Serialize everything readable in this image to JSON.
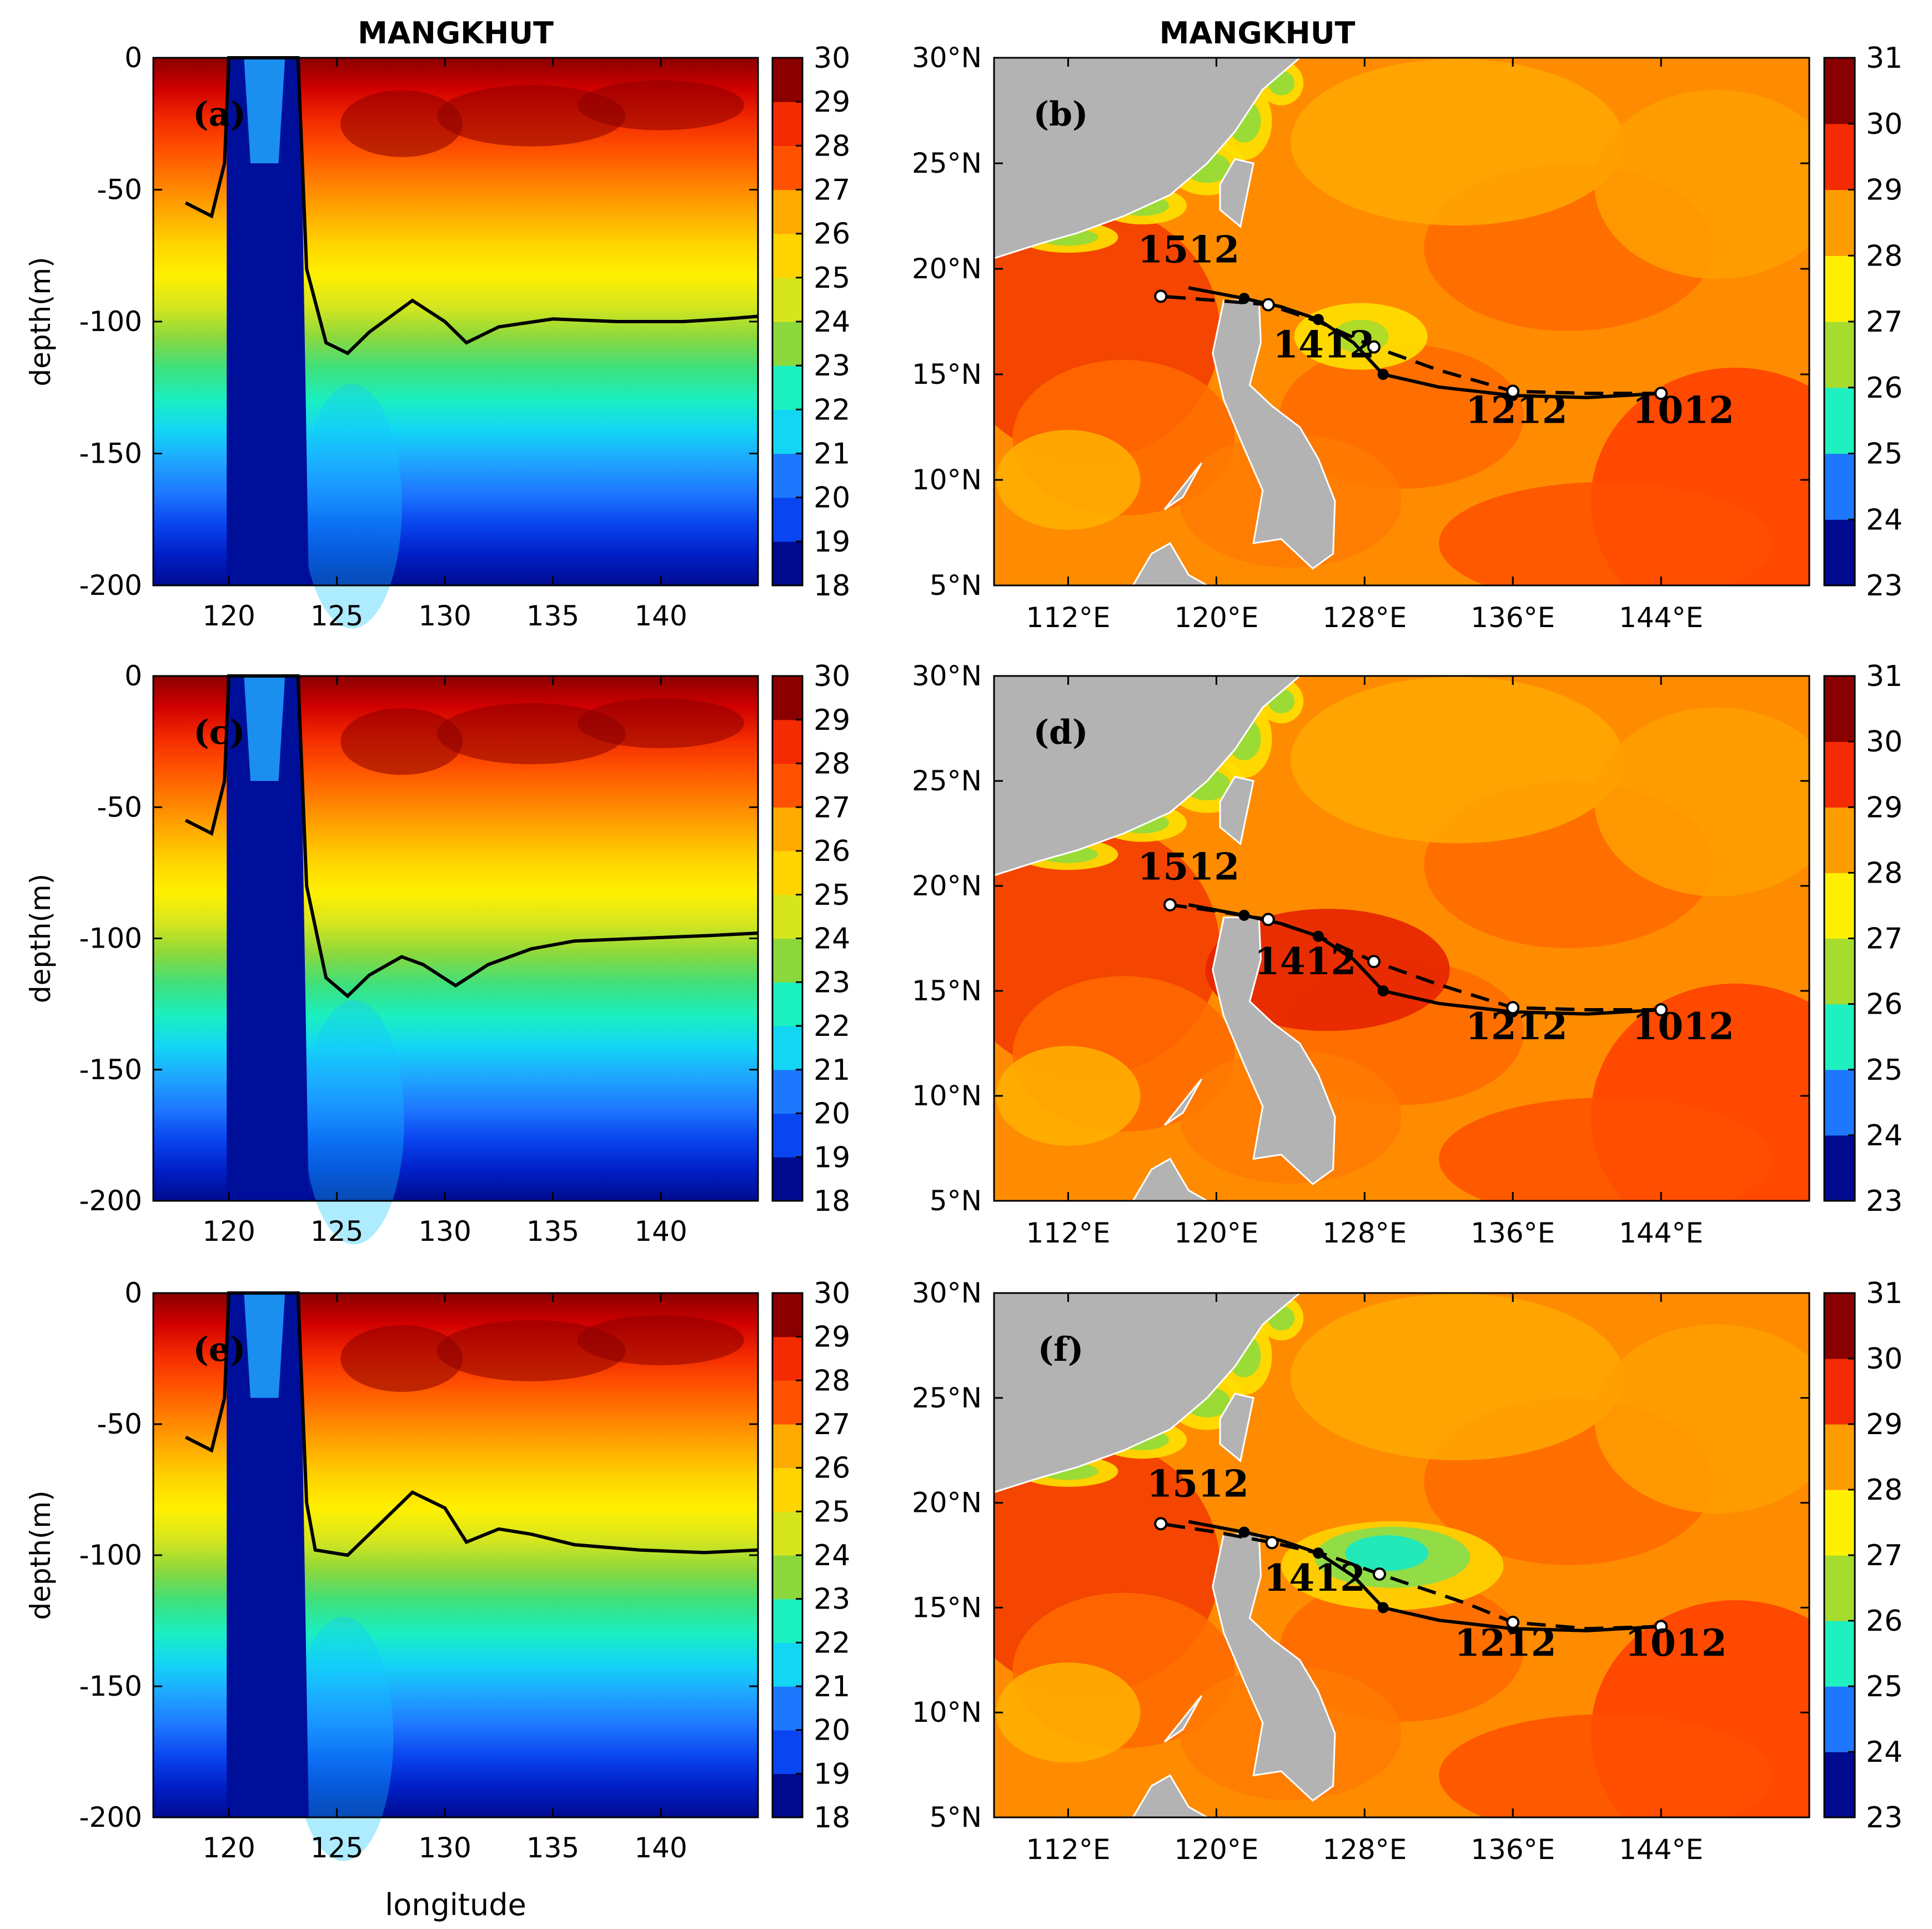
{
  "colors": {
    "land": "#b3b3b3",
    "track": "#000000",
    "frame": "#000000",
    "section_palette": [
      "#000b8f",
      "#0020c8",
      "#0a46f0",
      "#1e78ff",
      "#1ea6ff",
      "#13d6f5",
      "#1bf0c0",
      "#3de07c",
      "#8cd83c",
      "#d6e61e",
      "#fff000",
      "#ffd400",
      "#ffaa00",
      "#ff7e00",
      "#ff5200",
      "#f42a00",
      "#d10000",
      "#8a0000"
    ],
    "sst_palette": [
      "#000b8f",
      "#0a3cf0",
      "#1e78ff",
      "#13c6ff",
      "#1ef0c0",
      "#46e072",
      "#a6dc2e",
      "#fff000",
      "#ffca00",
      "#ff9c00",
      "#ff6c12",
      "#f42a00",
      "#d10000",
      "#8a0000"
    ]
  },
  "chart_data": [
    {
      "id": "a",
      "type": "heatmap",
      "title": "MANGKHUT",
      "panel_label": "(a)",
      "xlabel": "",
      "ylabel": "depth(m)",
      "xlim": [
        116.5,
        144.5
      ],
      "ylim": [
        -200,
        0
      ],
      "xticks": [
        "120",
        "125",
        "130",
        "135",
        "140"
      ],
      "xtick_values": [
        120,
        125,
        130,
        135,
        140
      ],
      "yticks": [
        "0",
        "-50",
        "-100",
        "-150",
        "-200"
      ],
      "ytick_values": [
        0,
        -50,
        -100,
        -150,
        -200
      ],
      "colorbar": {
        "min": 18,
        "max": 30,
        "ticks": [
          "30",
          "29",
          "28",
          "27",
          "26",
          "25",
          "24",
          "23",
          "22",
          "21",
          "20",
          "19",
          "18"
        ]
      },
      "contour_26": [
        [
          118,
          -55
        ],
        [
          119.2,
          -60
        ],
        [
          119.8,
          -40
        ],
        [
          120,
          0
        ],
        [
          123.2,
          0
        ],
        [
          123.4,
          -40
        ],
        [
          123.6,
          -80
        ],
        [
          124.5,
          -108
        ],
        [
          125.5,
          -112
        ],
        [
          126.5,
          -104
        ],
        [
          128.5,
          -92
        ],
        [
          130,
          -100
        ],
        [
          131,
          -108
        ],
        [
          132.5,
          -102
        ],
        [
          135,
          -99
        ],
        [
          138,
          -100
        ],
        [
          141,
          -100
        ],
        [
          143,
          -99
        ],
        [
          144.5,
          -98
        ]
      ]
    },
    {
      "id": "b",
      "type": "heatmap",
      "title": "MANGKHUT",
      "panel_label": "(b)",
      "xlim": [
        108,
        152
      ],
      "ylim": [
        5,
        30
      ],
      "xticks": [
        "112°E",
        "120°E",
        "128°E",
        "136°E",
        "144°E"
      ],
      "xtick_values": [
        112,
        120,
        128,
        136,
        144
      ],
      "yticks": [
        "30°N",
        "25°N",
        "20°N",
        "15°N",
        "10°N",
        "5°N"
      ],
      "ytick_values": [
        30,
        25,
        20,
        15,
        10,
        5
      ],
      "colorbar": {
        "min": 23,
        "max": 31,
        "ticks": [
          "31",
          "30",
          "29",
          "28",
          "27",
          "26",
          "25",
          "24",
          "23"
        ]
      },
      "track_obs": [
        [
          144,
          14.1
        ],
        [
          140,
          13.9
        ],
        [
          136,
          14
        ],
        [
          132,
          14.4
        ],
        [
          129,
          15
        ],
        [
          127.4,
          16.5
        ],
        [
          125.5,
          17.6
        ],
        [
          123.5,
          18.2
        ],
        [
          121.5,
          18.6
        ],
        [
          118.5,
          19.1
        ]
      ],
      "track_model": [
        [
          144,
          14.1
        ],
        [
          140,
          14.1
        ],
        [
          136,
          14.2
        ],
        [
          132,
          15.2
        ],
        [
          128.5,
          16.3
        ],
        [
          125.5,
          17.5
        ],
        [
          122.8,
          18.3
        ],
        [
          120,
          18.5
        ],
        [
          117,
          18.7
        ]
      ],
      "dates": [
        {
          "label": "1512",
          "lon": 118.5,
          "lat": 20.3
        },
        {
          "label": "1412",
          "lon": 125.8,
          "lat": 15.8
        },
        {
          "label": "1212",
          "lon": 136.2,
          "lat": 12.7
        },
        {
          "label": "1012",
          "lon": 145.2,
          "lat": 12.7
        }
      ]
    },
    {
      "id": "c",
      "type": "heatmap",
      "title": "",
      "panel_label": "(c)",
      "xlabel": "",
      "ylabel": "depth(m)",
      "xlim": [
        116.5,
        144.5
      ],
      "ylim": [
        -200,
        0
      ],
      "xticks": [
        "120",
        "125",
        "130",
        "135",
        "140"
      ],
      "xtick_values": [
        120,
        125,
        130,
        135,
        140
      ],
      "yticks": [
        "0",
        "-50",
        "-100",
        "-150",
        "-200"
      ],
      "ytick_values": [
        0,
        -50,
        -100,
        -150,
        -200
      ],
      "colorbar": {
        "min": 18,
        "max": 30,
        "ticks": [
          "30",
          "29",
          "28",
          "27",
          "26",
          "25",
          "24",
          "23",
          "22",
          "21",
          "20",
          "19",
          "18"
        ]
      },
      "contour_26": [
        [
          118,
          -55
        ],
        [
          119.2,
          -60
        ],
        [
          119.8,
          -40
        ],
        [
          120,
          0
        ],
        [
          123.2,
          0
        ],
        [
          123.4,
          -40
        ],
        [
          123.6,
          -80
        ],
        [
          124.5,
          -115
        ],
        [
          125.5,
          -122
        ],
        [
          126.5,
          -114
        ],
        [
          128,
          -107
        ],
        [
          129,
          -110
        ],
        [
          130.5,
          -118
        ],
        [
          132,
          -110
        ],
        [
          134,
          -104
        ],
        [
          136,
          -101
        ],
        [
          139,
          -100
        ],
        [
          142,
          -99
        ],
        [
          144.5,
          -98
        ]
      ]
    },
    {
      "id": "d",
      "type": "heatmap",
      "title": "",
      "panel_label": "(d)",
      "xlim": [
        108,
        152
      ],
      "ylim": [
        5,
        30
      ],
      "xticks": [
        "112°E",
        "120°E",
        "128°E",
        "136°E",
        "144°E"
      ],
      "xtick_values": [
        112,
        120,
        128,
        136,
        144
      ],
      "yticks": [
        "30°N",
        "25°N",
        "20°N",
        "15°N",
        "10°N",
        "5°N"
      ],
      "ytick_values": [
        30,
        25,
        20,
        15,
        10,
        5
      ],
      "colorbar": {
        "min": 23,
        "max": 31,
        "ticks": [
          "31",
          "30",
          "29",
          "28",
          "27",
          "26",
          "25",
          "24",
          "23"
        ]
      },
      "track_obs": [
        [
          144,
          14.1
        ],
        [
          140,
          13.9
        ],
        [
          136,
          14
        ],
        [
          132,
          14.4
        ],
        [
          129,
          15
        ],
        [
          127.4,
          16.5
        ],
        [
          125.5,
          17.6
        ],
        [
          123.5,
          18.2
        ],
        [
          121.5,
          18.6
        ],
        [
          118.5,
          19.1
        ]
      ],
      "track_model": [
        [
          144,
          14.1
        ],
        [
          140,
          14.1
        ],
        [
          136,
          14.2
        ],
        [
          132,
          15.3
        ],
        [
          128.5,
          16.4
        ],
        [
          125.5,
          17.6
        ],
        [
          122.8,
          18.4
        ],
        [
          120,
          18.8
        ],
        [
          117.5,
          19.1
        ]
      ],
      "dates": [
        {
          "label": "1512",
          "lon": 118.5,
          "lat": 20.3
        },
        {
          "label": "1412",
          "lon": 124.8,
          "lat": 15.8
        },
        {
          "label": "1212",
          "lon": 136.2,
          "lat": 12.7
        },
        {
          "label": "1012",
          "lon": 145.2,
          "lat": 12.7
        }
      ]
    },
    {
      "id": "e",
      "type": "heatmap",
      "title": "",
      "panel_label": "(e)",
      "xlabel": "longitude",
      "ylabel": "depth(m)",
      "xlim": [
        116.5,
        144.5
      ],
      "ylim": [
        -200,
        0
      ],
      "xticks": [
        "120",
        "125",
        "130",
        "135",
        "140"
      ],
      "xtick_values": [
        120,
        125,
        130,
        135,
        140
      ],
      "yticks": [
        "0",
        "-50",
        "-100",
        "-150",
        "-200"
      ],
      "ytick_values": [
        0,
        -50,
        -100,
        -150,
        -200
      ],
      "colorbar": {
        "min": 18,
        "max": 30,
        "ticks": [
          "30",
          "29",
          "28",
          "27",
          "26",
          "25",
          "24",
          "23",
          "22",
          "21",
          "20",
          "19",
          "18"
        ]
      },
      "contour_26": [
        [
          118,
          -55
        ],
        [
          119.2,
          -60
        ],
        [
          119.8,
          -40
        ],
        [
          120,
          0
        ],
        [
          123.2,
          0
        ],
        [
          123.4,
          -40
        ],
        [
          123.6,
          -80
        ],
        [
          124,
          -98
        ],
        [
          125.5,
          -100
        ],
        [
          127,
          -88
        ],
        [
          128.5,
          -76
        ],
        [
          130,
          -82
        ],
        [
          131,
          -95
        ],
        [
          132.5,
          -90
        ],
        [
          134,
          -92
        ],
        [
          136,
          -96
        ],
        [
          139,
          -98
        ],
        [
          142,
          -99
        ],
        [
          144.5,
          -98
        ]
      ]
    },
    {
      "id": "f",
      "type": "heatmap",
      "title": "",
      "panel_label": "(f)",
      "xlim": [
        108,
        152
      ],
      "ylim": [
        5,
        30
      ],
      "xticks": [
        "112°E",
        "120°E",
        "128°E",
        "136°E",
        "144°E"
      ],
      "xtick_values": [
        112,
        120,
        128,
        136,
        144
      ],
      "yticks": [
        "30°N",
        "25°N",
        "20°N",
        "15°N",
        "10°N",
        "5°N"
      ],
      "ytick_values": [
        30,
        25,
        20,
        15,
        10,
        5
      ],
      "colorbar": {
        "min": 23,
        "max": 31,
        "ticks": [
          "31",
          "30",
          "29",
          "28",
          "27",
          "26",
          "25",
          "24",
          "23"
        ]
      },
      "track_obs": [
        [
          144,
          14.1
        ],
        [
          140,
          13.9
        ],
        [
          136,
          14
        ],
        [
          132,
          14.4
        ],
        [
          129,
          15
        ],
        [
          127.4,
          16.5
        ],
        [
          125.5,
          17.6
        ],
        [
          123.5,
          18.2
        ],
        [
          121.5,
          18.6
        ],
        [
          118.5,
          19.1
        ]
      ],
      "track_model": [
        [
          144,
          14.1
        ],
        [
          140,
          14
        ],
        [
          136,
          14.3
        ],
        [
          133.5,
          15.2
        ],
        [
          128.8,
          16.6
        ],
        [
          126,
          17.5
        ],
        [
          123,
          18.1
        ],
        [
          120,
          18.6
        ],
        [
          117,
          19
        ]
      ],
      "dates": [
        {
          "label": "1512",
          "lon": 119,
          "lat": 20.3
        },
        {
          "label": "1412",
          "lon": 125.3,
          "lat": 15.8
        },
        {
          "label": "1212",
          "lon": 135.6,
          "lat": 12.7
        },
        {
          "label": "1012",
          "lon": 144.8,
          "lat": 12.7
        }
      ]
    }
  ]
}
